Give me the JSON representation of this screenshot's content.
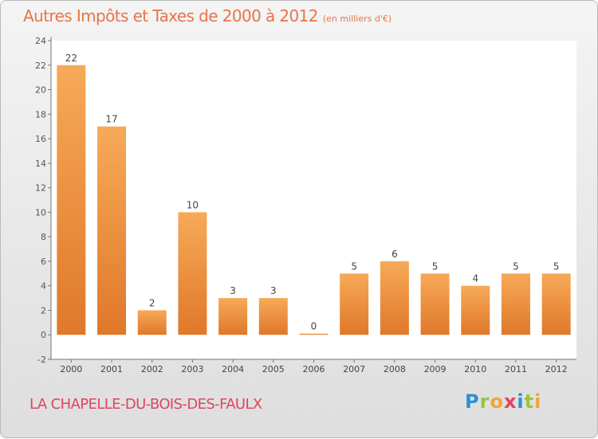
{
  "header": {
    "title": "Autres Impôts et Taxes de 2000 à 2012",
    "unit": "(en milliers d'€)"
  },
  "footer": {
    "place": "LA CHAPELLE-DU-BOIS-DES-FAULX"
  },
  "logo": {
    "text": "Proxiti",
    "letters": [
      {
        "ch": "P",
        "color": "#2f8fd6"
      },
      {
        "ch": "r",
        "color": "#9bc43a"
      },
      {
        "ch": "o",
        "color": "#f2a43a"
      },
      {
        "ch": "x",
        "color": "#e0455e"
      },
      {
        "ch": "i",
        "color": "#2f8fd6"
      },
      {
        "ch": "t",
        "color": "#9bc43a"
      },
      {
        "ch": "i",
        "color": "#f2a43a"
      }
    ]
  },
  "colors": {
    "title": "#e8744a",
    "place": "#e0455e",
    "bar_light": "#f6aa58",
    "bar_dark": "#e0782a"
  },
  "chart_data": {
    "type": "bar",
    "categories": [
      "2000",
      "2001",
      "2002",
      "2003",
      "2004",
      "2005",
      "2006",
      "2007",
      "2008",
      "2009",
      "2010",
      "2011",
      "2012"
    ],
    "values": [
      22,
      17,
      2,
      10,
      3,
      3,
      0,
      5,
      6,
      5,
      4,
      5,
      5
    ],
    "ylim": [
      -2,
      24
    ],
    "yticks": [
      -2,
      0,
      2,
      4,
      6,
      8,
      10,
      12,
      14,
      16,
      18,
      20,
      22,
      24
    ],
    "grid": false
  }
}
